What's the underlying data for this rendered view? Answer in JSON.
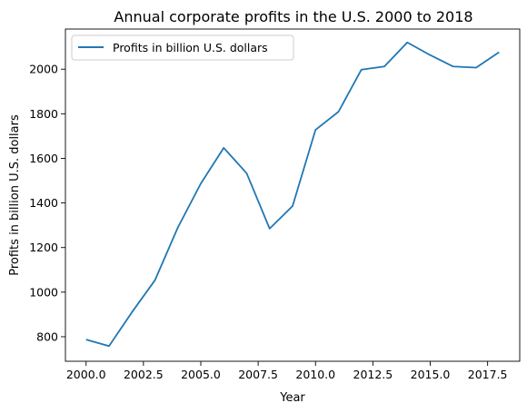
{
  "chart_data": {
    "type": "line",
    "title": "Annual corporate profits in the U.S. 2000 to 2018",
    "xlabel": "Year",
    "ylabel": "Profits in billion U.S. dollars",
    "xlim": [
      1999.1,
      2018.9
    ],
    "ylim": [
      690,
      2180
    ],
    "xticks": [
      2000.0,
      2002.5,
      2005.0,
      2007.5,
      2010.0,
      2012.5,
      2015.0,
      2017.5
    ],
    "xtick_labels": [
      "2000.0",
      "2002.5",
      "2005.0",
      "2007.5",
      "2010.0",
      "2012.5",
      "2015.0",
      "2017.5"
    ],
    "yticks": [
      800,
      1000,
      1200,
      1400,
      1600,
      1800,
      2000
    ],
    "ytick_labels": [
      "800",
      "1000",
      "1200",
      "1400",
      "1600",
      "1800",
      "2000"
    ],
    "grid": false,
    "legend_position": "upper-left",
    "series": [
      {
        "name": "Profits in billion U.S. dollars",
        "color": "#1f77b4",
        "x": [
          2000,
          2001,
          2002,
          2003,
          2004,
          2005,
          2006,
          2007,
          2008,
          2009,
          2010,
          2011,
          2012,
          2013,
          2014,
          2015,
          2016,
          2017,
          2018
        ],
        "y": [
          787,
          758,
          910,
          1053,
          1290,
          1487,
          1647,
          1533,
          1285,
          1386,
          1728,
          1809,
          1998,
          2012,
          2120,
          2063,
          2012,
          2007,
          2076
        ]
      }
    ]
  }
}
